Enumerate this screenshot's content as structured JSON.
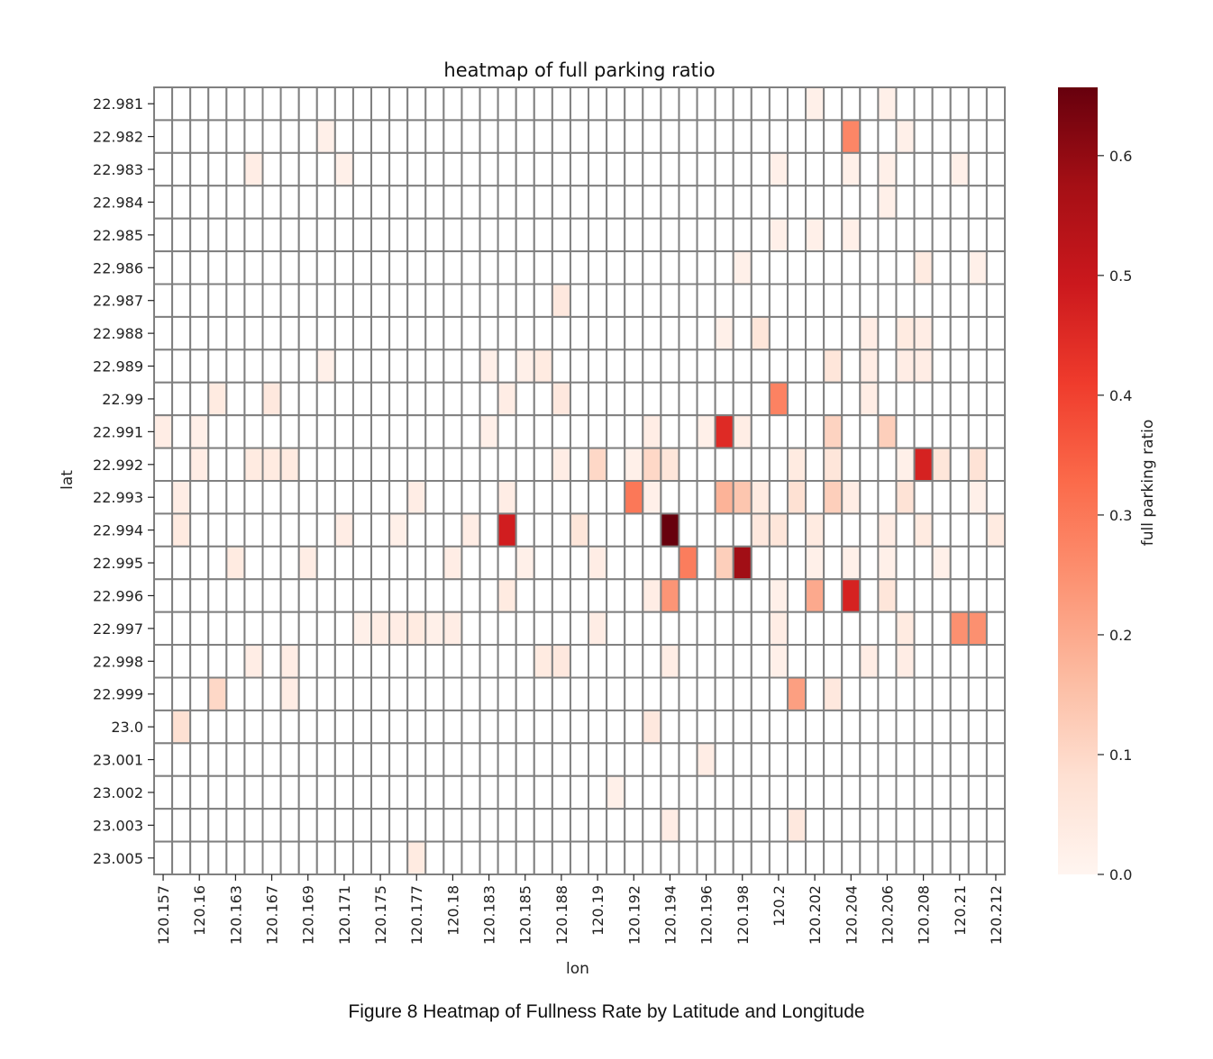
{
  "figure": {
    "caption": "Figure 8 Heatmap of Fullness Rate by Latitude and Longitude"
  },
  "chart_data": {
    "type": "heatmap",
    "title": "heatmap of full parking ratio",
    "xlabel": "lon",
    "ylabel": "lat",
    "colorbar_label": "full parking ratio",
    "colormap": "Reds",
    "colorbar_ticks": [
      "0.0",
      "0.1",
      "0.2",
      "0.3",
      "0.4",
      "0.5",
      "0.6"
    ],
    "vmin": 0.0,
    "vmax": 0.657,
    "cell_border_color": "#808080",
    "x_tick_labels": [
      "120.157",
      "120.16",
      "120.163",
      "120.167",
      "120.169",
      "120.171",
      "120.175",
      "120.177",
      "120.18",
      "120.183",
      "120.185",
      "120.188",
      "120.19",
      "120.192",
      "120.194",
      "120.196",
      "120.198",
      "120.2",
      "120.202",
      "120.204",
      "120.206",
      "120.208",
      "120.21",
      "120.212"
    ],
    "y_tick_labels": [
      "22.981",
      "22.982",
      "22.983",
      "22.984",
      "22.985",
      "22.986",
      "22.987",
      "22.988",
      "22.989",
      "22.99",
      "22.991",
      "22.992",
      "22.993",
      "22.994",
      "22.995",
      "22.996",
      "22.997",
      "22.998",
      "22.999",
      "23.0",
      "23.001",
      "23.002",
      "23.003",
      "23.005"
    ],
    "n_cols": 47,
    "n_rows": 24,
    "cells": [
      [
        0,
        36,
        0.02
      ],
      [
        0,
        40,
        0.02
      ],
      [
        1,
        9,
        0.02
      ],
      [
        1,
        38,
        0.27
      ],
      [
        1,
        41,
        0.02
      ],
      [
        2,
        5,
        0.03
      ],
      [
        2,
        10,
        0.02
      ],
      [
        2,
        34,
        0.02
      ],
      [
        2,
        38,
        0.02
      ],
      [
        2,
        40,
        0.02
      ],
      [
        2,
        44,
        0.02
      ],
      [
        3,
        40,
        0.02
      ],
      [
        4,
        34,
        0.02
      ],
      [
        4,
        36,
        0.02
      ],
      [
        4,
        38,
        0.02
      ],
      [
        5,
        32,
        0.02
      ],
      [
        5,
        42,
        0.04
      ],
      [
        5,
        45,
        0.02
      ],
      [
        6,
        22,
        0.05
      ],
      [
        7,
        31,
        0.02
      ],
      [
        7,
        33,
        0.06
      ],
      [
        7,
        39,
        0.03
      ],
      [
        7,
        41,
        0.04
      ],
      [
        7,
        42,
        0.03
      ],
      [
        8,
        9,
        0.02
      ],
      [
        8,
        18,
        0.02
      ],
      [
        8,
        20,
        0.02
      ],
      [
        8,
        21,
        0.04
      ],
      [
        8,
        37,
        0.06
      ],
      [
        8,
        39,
        0.03
      ],
      [
        8,
        41,
        0.03
      ],
      [
        8,
        42,
        0.03
      ],
      [
        9,
        3,
        0.04
      ],
      [
        9,
        6,
        0.05
      ],
      [
        9,
        19,
        0.03
      ],
      [
        9,
        22,
        0.05
      ],
      [
        9,
        34,
        0.28
      ],
      [
        9,
        39,
        0.03
      ],
      [
        10,
        0,
        0.03
      ],
      [
        10,
        2,
        0.02
      ],
      [
        10,
        18,
        0.02
      ],
      [
        10,
        27,
        0.03
      ],
      [
        10,
        30,
        0.02
      ],
      [
        10,
        31,
        0.45
      ],
      [
        10,
        32,
        0.03
      ],
      [
        10,
        37,
        0.11
      ],
      [
        10,
        40,
        0.12
      ],
      [
        11,
        2,
        0.03
      ],
      [
        11,
        5,
        0.04
      ],
      [
        11,
        6,
        0.04
      ],
      [
        11,
        7,
        0.04
      ],
      [
        11,
        22,
        0.03
      ],
      [
        11,
        24,
        0.1
      ],
      [
        11,
        26,
        0.02
      ],
      [
        11,
        27,
        0.1
      ],
      [
        11,
        28,
        0.06
      ],
      [
        11,
        35,
        0.04
      ],
      [
        11,
        37,
        0.06
      ],
      [
        11,
        41,
        0.02
      ],
      [
        11,
        42,
        0.47
      ],
      [
        11,
        43,
        0.06
      ],
      [
        11,
        45,
        0.07
      ],
      [
        12,
        1,
        0.03
      ],
      [
        12,
        14,
        0.03
      ],
      [
        12,
        19,
        0.03
      ],
      [
        12,
        26,
        0.3
      ],
      [
        12,
        27,
        0.02
      ],
      [
        12,
        31,
        0.18
      ],
      [
        12,
        32,
        0.14
      ],
      [
        12,
        33,
        0.04
      ],
      [
        12,
        35,
        0.08
      ],
      [
        12,
        37,
        0.12
      ],
      [
        12,
        38,
        0.03
      ],
      [
        12,
        41,
        0.07
      ],
      [
        12,
        45,
        0.02
      ],
      [
        13,
        1,
        0.04
      ],
      [
        13,
        10,
        0.03
      ],
      [
        13,
        13,
        0.02
      ],
      [
        13,
        17,
        0.03
      ],
      [
        13,
        19,
        0.48
      ],
      [
        13,
        23,
        0.06
      ],
      [
        13,
        28,
        0.66
      ],
      [
        13,
        33,
        0.05
      ],
      [
        13,
        34,
        0.06
      ],
      [
        13,
        36,
        0.04
      ],
      [
        13,
        40,
        0.03
      ],
      [
        13,
        42,
        0.04
      ],
      [
        13,
        46,
        0.04
      ],
      [
        14,
        4,
        0.04
      ],
      [
        14,
        8,
        0.03
      ],
      [
        14,
        16,
        0.03
      ],
      [
        14,
        20,
        0.02
      ],
      [
        14,
        24,
        0.03
      ],
      [
        14,
        29,
        0.29
      ],
      [
        14,
        31,
        0.12
      ],
      [
        14,
        32,
        0.58
      ],
      [
        14,
        36,
        0.02
      ],
      [
        14,
        38,
        0.02
      ],
      [
        14,
        40,
        0.02
      ],
      [
        14,
        43,
        0.02
      ],
      [
        15,
        19,
        0.04
      ],
      [
        15,
        27,
        0.03
      ],
      [
        15,
        28,
        0.24
      ],
      [
        15,
        34,
        0.02
      ],
      [
        15,
        36,
        0.2
      ],
      [
        15,
        38,
        0.47
      ],
      [
        15,
        40,
        0.06
      ],
      [
        16,
        11,
        0.02
      ],
      [
        16,
        12,
        0.03
      ],
      [
        16,
        13,
        0.03
      ],
      [
        16,
        14,
        0.04
      ],
      [
        16,
        15,
        0.02
      ],
      [
        16,
        16,
        0.03
      ],
      [
        16,
        24,
        0.03
      ],
      [
        16,
        34,
        0.03
      ],
      [
        16,
        41,
        0.04
      ],
      [
        16,
        44,
        0.25
      ],
      [
        16,
        45,
        0.25
      ],
      [
        17,
        5,
        0.03
      ],
      [
        17,
        7,
        0.03
      ],
      [
        17,
        21,
        0.04
      ],
      [
        17,
        22,
        0.05
      ],
      [
        17,
        28,
        0.03
      ],
      [
        17,
        34,
        0.02
      ],
      [
        17,
        39,
        0.03
      ],
      [
        17,
        41,
        0.03
      ],
      [
        18,
        3,
        0.1
      ],
      [
        18,
        7,
        0.03
      ],
      [
        18,
        35,
        0.22
      ],
      [
        18,
        37,
        0.05
      ],
      [
        19,
        1,
        0.08
      ],
      [
        19,
        27,
        0.05
      ],
      [
        20,
        30,
        0.03
      ],
      [
        21,
        25,
        0.02
      ],
      [
        22,
        28,
        0.03
      ],
      [
        22,
        35,
        0.05
      ],
      [
        23,
        14,
        0.04
      ]
    ]
  }
}
